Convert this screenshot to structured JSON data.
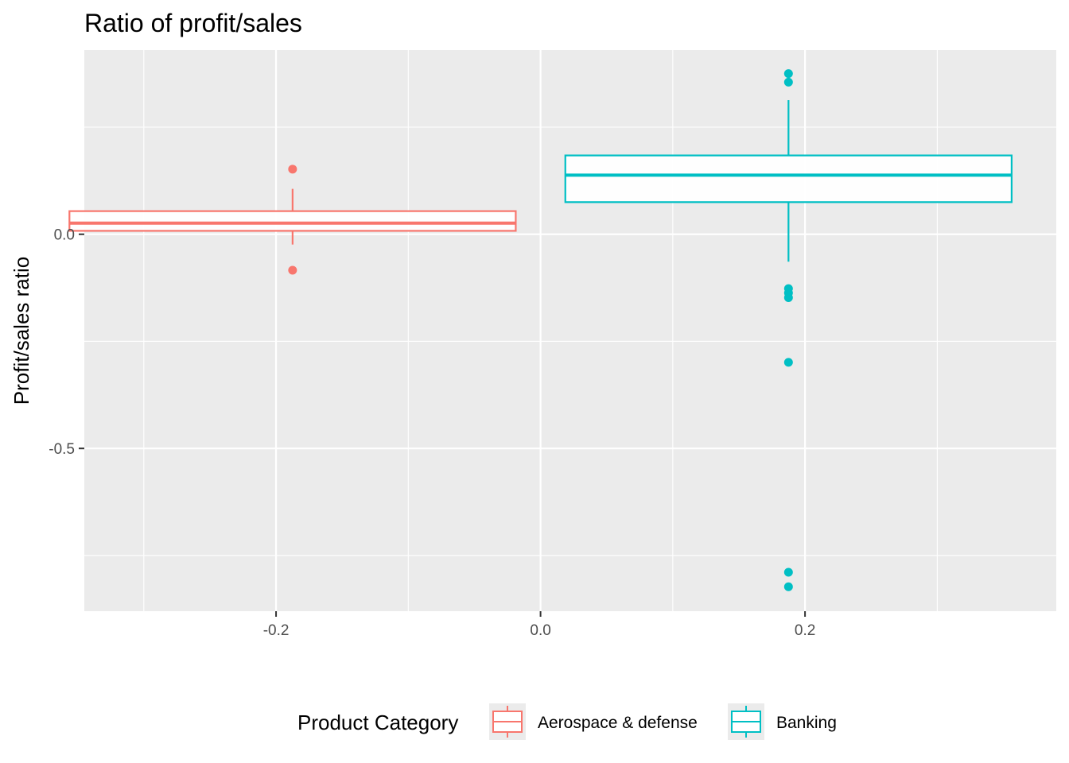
{
  "chart_data": {
    "type": "boxplot",
    "title": "Ratio of profit/sales",
    "xlabel": "",
    "ylabel": "Profit/sales ratio",
    "xlim": [
      -0.345,
      0.39
    ],
    "ylim": [
      -0.88,
      0.43
    ],
    "x_ticks": [
      {
        "value": -0.2,
        "label": "-0.2"
      },
      {
        "value": 0.0,
        "label": "0.0"
      },
      {
        "value": 0.2,
        "label": "0.2"
      }
    ],
    "y_ticks": [
      {
        "value": 0.0,
        "label": "0.0"
      },
      {
        "value": -0.5,
        "label": "-0.5"
      }
    ],
    "x_minor_gridlines": [
      -0.3,
      -0.1,
      0.1,
      0.3
    ],
    "y_minor_gridlines": [
      0.25,
      -0.25,
      -0.75
    ],
    "grid": true,
    "legend": {
      "title": "Product Category",
      "position": "bottom",
      "entries": [
        {
          "label": "Aerospace & defense",
          "color": "#F8766D"
        },
        {
          "label": "Banking",
          "color": "#00BFC4"
        }
      ]
    },
    "series": [
      {
        "name": "Aerospace & defense",
        "color": "#F8766D",
        "fill": "#ffffff",
        "x_center": -0.1875,
        "box_width": 0.3375,
        "min": -0.024,
        "q1": 0.008,
        "median": 0.026,
        "q3": 0.054,
        "max": 0.106,
        "outliers": [
          0.152,
          -0.084
        ]
      },
      {
        "name": "Banking",
        "color": "#00BFC4",
        "fill": "#ffffff",
        "x_center": 0.1875,
        "box_width": 0.3375,
        "min": -0.064,
        "q1": 0.075,
        "median": 0.138,
        "q3": 0.184,
        "max": 0.313,
        "outliers": [
          0.375,
          0.355,
          -0.127,
          -0.137,
          -0.148,
          -0.299,
          -0.789,
          -0.823
        ]
      }
    ]
  },
  "theme": {
    "panel_background": "#EBEBEB",
    "gridline_color": "#FFFFFF",
    "tick_label_color": "#4D4D4D"
  }
}
